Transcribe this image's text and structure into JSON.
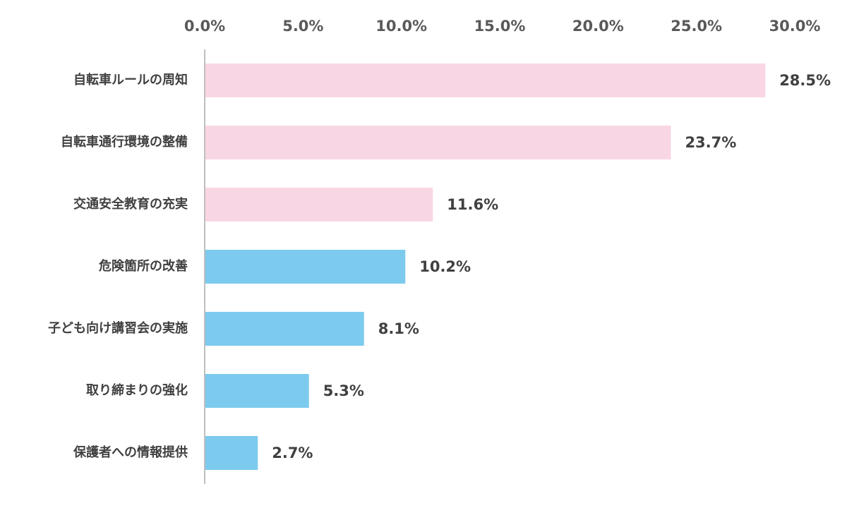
{
  "chart_data": {
    "type": "bar",
    "orientation": "horizontal",
    "title": "",
    "xlabel": "",
    "ylabel": "",
    "xlim": [
      0,
      30
    ],
    "x_ticks": [
      0,
      5,
      10,
      15,
      20,
      25,
      30
    ],
    "x_tick_labels": [
      "0.0%",
      "5.0%",
      "10.0%",
      "15.0%",
      "20.0%",
      "25.0%",
      "30.0%"
    ],
    "x_axis_position": "top",
    "grid": false,
    "legend": "none",
    "categories": [
      "自転車ルールの周知",
      "自転車通行環境の整備",
      "交通安全教育の充実",
      "危険箇所の改善",
      "子ども向け講習会の実施",
      "取り締まりの強化",
      "保護者への情報提供"
    ],
    "values": [
      28.5,
      23.7,
      11.6,
      10.2,
      8.1,
      5.3,
      2.7
    ],
    "value_labels": [
      "28.5%",
      "23.7%",
      "11.6%",
      "10.2%",
      "8.1%",
      "5.3%",
      "2.7%"
    ],
    "bar_colors": [
      "#f9d6e4",
      "#f9d6e4",
      "#f9d6e4",
      "#7ccaee",
      "#7ccaee",
      "#7ccaee",
      "#7ccaee"
    ],
    "colors": {
      "highlight": "#f9d6e4",
      "default": "#7ccaee",
      "axis_line": "#bfbfbf"
    }
  }
}
